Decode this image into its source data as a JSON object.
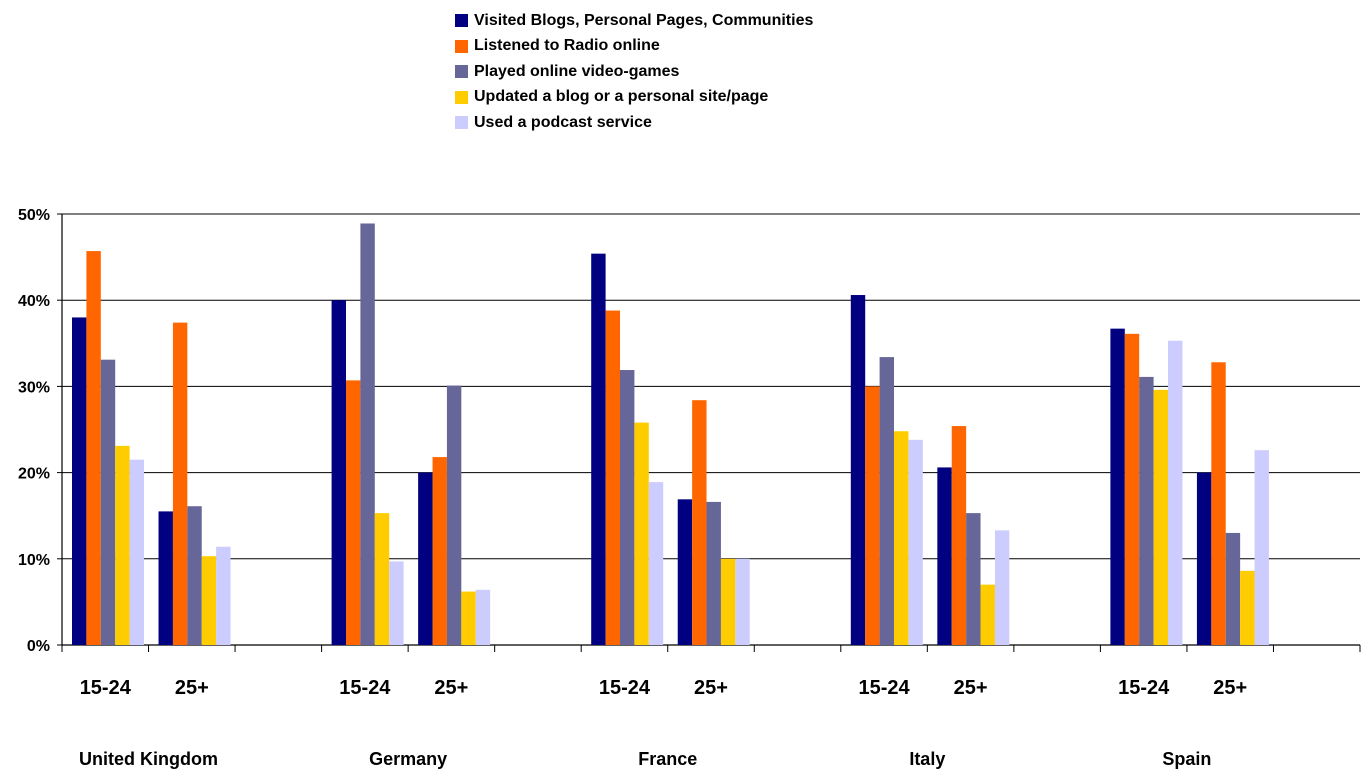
{
  "chart_data": {
    "type": "bar",
    "y_ticks": [
      "0%",
      "10%",
      "20%",
      "30%",
      "40%",
      "50%"
    ],
    "ylim": [
      0,
      50
    ],
    "grid": true,
    "legend_position": "top",
    "subgroups": [
      "15-24",
      "25+"
    ],
    "groups": [
      {
        "name": "United Kingdom",
        "subcategories": [
          {
            "label": "15-24",
            "values": [
              38,
              45.7,
              33.1,
              23.1,
              21.5
            ]
          },
          {
            "label": "25+",
            "values": [
              15.5,
              37.4,
              16.1,
              10.3,
              11.4
            ]
          }
        ]
      },
      {
        "name": "Germany",
        "subcategories": [
          {
            "label": "15-24",
            "values": [
              40,
              30.7,
              48.9,
              15.3,
              9.7
            ]
          },
          {
            "label": "25+",
            "values": [
              20,
              21.8,
              30.1,
              6.2,
              6.4
            ]
          }
        ]
      },
      {
        "name": "France",
        "subcategories": [
          {
            "label": "15-24",
            "values": [
              45.4,
              38.8,
              31.9,
              25.8,
              18.9
            ]
          },
          {
            "label": "25+",
            "values": [
              16.9,
              28.4,
              16.6,
              10,
              10
            ]
          }
        ]
      },
      {
        "name": "Italy",
        "subcategories": [
          {
            "label": "15-24",
            "values": [
              40.6,
              30,
              33.4,
              24.8,
              23.8
            ]
          },
          {
            "label": "25+",
            "values": [
              20.6,
              25.4,
              15.3,
              7,
              13.3
            ]
          }
        ]
      },
      {
        "name": "Spain",
        "subcategories": [
          {
            "label": "15-24",
            "values": [
              36.7,
              36.1,
              31.1,
              29.6,
              35.3
            ]
          },
          {
            "label": "25+",
            "values": [
              20,
              32.8,
              13,
              8.6,
              22.6
            ]
          }
        ]
      }
    ],
    "series": [
      {
        "name": "Visited Blogs, Personal Pages, Communities",
        "color": "#000080"
      },
      {
        "name": "Listened to Radio online",
        "color": "#FF6600"
      },
      {
        "name": "Played online video-games",
        "color": "#666699"
      },
      {
        "name": "Updated a blog or a personal site/page",
        "color": "#FFCC00"
      },
      {
        "name": "Used a podcast service",
        "color": "#CCCCFF"
      }
    ]
  }
}
